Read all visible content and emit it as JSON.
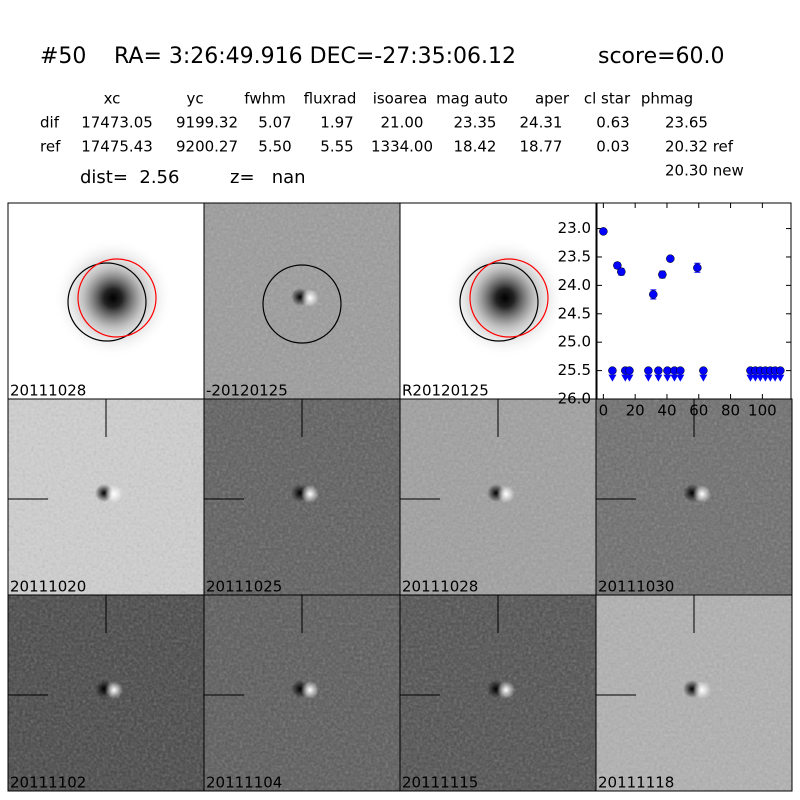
{
  "header": {
    "id": "#50",
    "coords": "RA= 3:26:49.916 DEC=-27:35:06.12",
    "score": "score=60.0"
  },
  "table": {
    "columns": [
      "xc",
      "yc",
      "fwhm",
      "fluxrad",
      "isoarea",
      "mag auto",
      "aper",
      "cl star",
      "phmag"
    ],
    "rows": [
      {
        "label": "dif",
        "cells": [
          "17473.05",
          "9199.32",
          "5.07",
          "1.97",
          "21.00",
          "23.35",
          "24.31",
          "0.63",
          "23.65"
        ]
      },
      {
        "label": "ref",
        "cells": [
          "17475.43",
          "9200.27",
          "5.50",
          "5.55",
          "1334.00",
          "18.42",
          "18.77",
          "0.03",
          "20.32 ref"
        ]
      }
    ],
    "extra": "20.30 new"
  },
  "dist": "dist=  2.56",
  "z": "z=   nan",
  "panels": [
    {
      "label": "20111028",
      "color": "#000000"
    },
    {
      "label": "-20120125",
      "color": "#000000"
    },
    {
      "label": "R20120125",
      "color": "#000000"
    },
    {
      "label": "20111020",
      "color": "#000000"
    },
    {
      "label": "20111025",
      "color": "#000000"
    },
    {
      "label": "20111028",
      "color": "#ff0000"
    },
    {
      "label": "20111030",
      "color": "#000000"
    },
    {
      "label": "20111102",
      "color": "#000000"
    },
    {
      "label": "20111104",
      "color": "#000000"
    },
    {
      "label": "20111115",
      "color": "#000000"
    },
    {
      "label": "20111118",
      "color": "#000000"
    }
  ],
  "chart_data": {
    "type": "scatter",
    "xlim": [
      -4,
      118
    ],
    "xticks": [
      0,
      20,
      40,
      60,
      80,
      100
    ],
    "ylim": [
      26.0,
      22.55
    ],
    "yticks": [
      {
        "value": 23,
        "label": "23.0"
      },
      {
        "value": 23.5,
        "label": "23.5"
      },
      {
        "value": 24,
        "label": "24.0"
      },
      {
        "value": 24.5,
        "label": "24.5"
      },
      {
        "value": 25,
        "label": "25.0"
      },
      {
        "value": 25.5,
        "label": "25.5"
      },
      {
        "value": 26,
        "label": "26.0"
      }
    ],
    "series": [
      {
        "color": "#0000ff",
        "marker": "circle",
        "x": [
          0,
          8.8,
          11.3,
          31.4,
          37.1,
          42.1,
          59.1
        ],
        "values": [
          23.05,
          23.65,
          23.76,
          24.16,
          23.81,
          23.53,
          23.69
        ],
        "errors": [
          0.03,
          0.05,
          0.06,
          0.08,
          0.06,
          0.04,
          0.08
        ]
      },
      {
        "color": "#0000ff",
        "marker": "upper-limit",
        "x": [
          5.7,
          13.8,
          16.4,
          28.3,
          34.6,
          40.3,
          44.7,
          48.4,
          62.9,
          92.5,
          95.6,
          98.7,
          101.9,
          105,
          108,
          111.3
        ],
        "values": [
          25.5,
          25.5,
          25.5,
          25.5,
          25.5,
          25.5,
          25.5,
          25.5,
          25.5,
          25.5,
          25.5,
          25.5,
          25.5,
          25.5,
          25.5,
          25.5
        ]
      }
    ]
  }
}
